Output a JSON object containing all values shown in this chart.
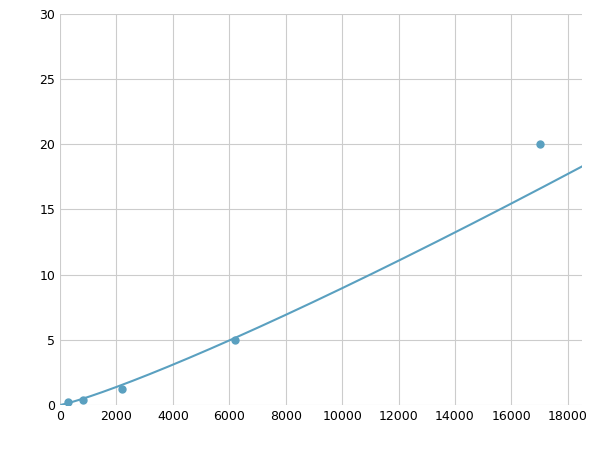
{
  "x": [
    300,
    800,
    2200,
    6200,
    17000
  ],
  "y": [
    0.2,
    0.4,
    1.2,
    5.0,
    20.0
  ],
  "line_color": "#5aa0c0",
  "marker_color": "#5aa0c0",
  "marker_size": 5,
  "xlim": [
    0,
    18500
  ],
  "ylim": [
    0,
    30
  ],
  "xticks": [
    0,
    2000,
    4000,
    6000,
    8000,
    10000,
    12000,
    14000,
    16000,
    18000
  ],
  "yticks": [
    0,
    5,
    10,
    15,
    20,
    25,
    30
  ],
  "grid_color": "#cccccc",
  "bg_color": "#ffffff",
  "figsize": [
    6.0,
    4.5
  ],
  "dpi": 100
}
